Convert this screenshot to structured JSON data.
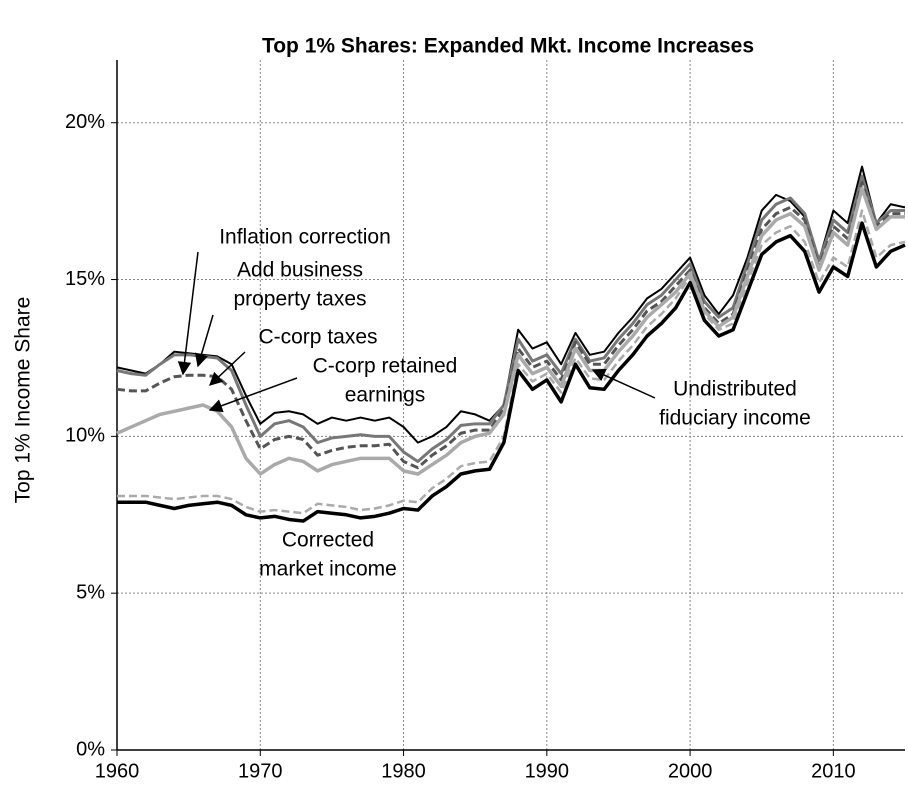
{
  "chart_data": {
    "type": "line",
    "title": "Top 1% Shares: Expanded Mkt. Income Increases",
    "y_label": "Top 1%  Income Share",
    "xlim": [
      1960,
      2015
    ],
    "xticks": [
      1960,
      1970,
      1980,
      1990,
      2000,
      2010
    ],
    "ylim": [
      0,
      22
    ],
    "yticks": [
      {
        "value": 0,
        "label": "0%"
      },
      {
        "value": 5,
        "label": "5%"
      },
      {
        "value": 10,
        "label": "10%"
      },
      {
        "value": 15,
        "label": "15%"
      },
      {
        "value": 20,
        "label": "20%"
      }
    ],
    "grid": true,
    "x": [
      1960,
      1961,
      1962,
      1963,
      1964,
      1965,
      1966,
      1967,
      1968,
      1969,
      1970,
      1971,
      1972,
      1973,
      1974,
      1975,
      1976,
      1977,
      1978,
      1979,
      1980,
      1981,
      1982,
      1983,
      1984,
      1985,
      1986,
      1987,
      1988,
      1989,
      1990,
      1991,
      1992,
      1993,
      1994,
      1995,
      1996,
      1997,
      1998,
      1999,
      2000,
      2001,
      2002,
      2003,
      2004,
      2005,
      2006,
      2007,
      2008,
      2009,
      2010,
      2011,
      2012,
      2013,
      2014,
      2015
    ],
    "series": [
      {
        "name": "Inflation correction",
        "color": "#000000",
        "dashed": false,
        "values": [
          12.2,
          12.1,
          12.0,
          12.3,
          12.7,
          12.65,
          12.6,
          12.55,
          12.3,
          11.3,
          10.4,
          10.75,
          10.8,
          10.7,
          10.4,
          10.6,
          10.5,
          10.6,
          10.5,
          10.6,
          10.3,
          9.8,
          10.0,
          10.3,
          10.8,
          10.7,
          10.5,
          11.0,
          13.4,
          12.8,
          13.0,
          12.3,
          13.3,
          12.6,
          12.7,
          13.3,
          13.8,
          14.4,
          14.7,
          15.2,
          15.7,
          14.5,
          13.9,
          14.5,
          15.7,
          17.2,
          17.7,
          17.5,
          17.0,
          15.6,
          17.2,
          16.8,
          18.6,
          16.8,
          17.4,
          17.3
        ]
      },
      {
        "name": "Add business property taxes",
        "color": "#777777",
        "dashed": false,
        "values": [
          12.1,
          12.0,
          11.95,
          12.3,
          12.6,
          12.6,
          12.55,
          12.5,
          12.1,
          11.0,
          10.0,
          10.4,
          10.5,
          10.3,
          9.8,
          9.95,
          10.0,
          10.05,
          10.0,
          10.0,
          9.5,
          9.2,
          9.6,
          9.9,
          10.35,
          10.4,
          10.4,
          11.0,
          13.1,
          12.4,
          12.6,
          12.0,
          13.1,
          12.4,
          12.5,
          13.1,
          13.6,
          14.2,
          14.5,
          15.0,
          15.5,
          14.3,
          13.8,
          14.1,
          15.5,
          16.9,
          17.4,
          17.6,
          17.1,
          15.6,
          16.9,
          16.5,
          18.3,
          16.8,
          17.2,
          17.2
        ]
      },
      {
        "name": "C-corp taxes",
        "color": "#555555",
        "dashed": true,
        "values": [
          11.5,
          11.45,
          11.45,
          11.7,
          11.9,
          11.95,
          11.95,
          11.9,
          11.5,
          10.5,
          9.6,
          9.9,
          10.0,
          9.9,
          9.4,
          9.55,
          9.65,
          9.7,
          9.7,
          9.75,
          9.2,
          9.0,
          9.4,
          9.7,
          10.1,
          10.2,
          10.2,
          10.9,
          12.8,
          12.2,
          12.4,
          11.8,
          13.0,
          12.3,
          12.3,
          12.9,
          13.4,
          14.0,
          14.3,
          14.8,
          15.3,
          14.1,
          13.6,
          13.9,
          15.3,
          16.6,
          17.1,
          17.3,
          16.9,
          15.4,
          16.7,
          16.3,
          18.1,
          16.7,
          17.1,
          17.1
        ]
      },
      {
        "name": "C-corp retained earnings",
        "color": "#aaaaaa",
        "dashed": false,
        "values": [
          10.1,
          10.3,
          10.5,
          10.7,
          10.8,
          10.9,
          11.0,
          10.8,
          10.3,
          9.3,
          8.8,
          9.1,
          9.3,
          9.2,
          8.9,
          9.1,
          9.2,
          9.3,
          9.3,
          9.3,
          8.9,
          8.8,
          9.1,
          9.4,
          9.8,
          10.0,
          10.1,
          10.7,
          12.6,
          12.0,
          12.2,
          11.6,
          12.8,
          12.1,
          12.1,
          12.7,
          13.2,
          13.8,
          14.2,
          14.6,
          15.2,
          14.0,
          13.5,
          13.8,
          15.1,
          16.4,
          16.9,
          17.1,
          16.7,
          15.3,
          16.5,
          16.1,
          17.9,
          16.6,
          17.0,
          17.0
        ]
      },
      {
        "name": "Undistributed fiduciary income",
        "color": "#aaaaaa",
        "dashed": true,
        "values": [
          8.1,
          8.1,
          8.1,
          8.05,
          8.0,
          8.05,
          8.1,
          8.1,
          8.0,
          7.75,
          7.6,
          7.65,
          7.6,
          7.55,
          7.85,
          7.8,
          7.75,
          7.65,
          7.7,
          7.8,
          7.95,
          7.9,
          8.35,
          8.65,
          9.05,
          9.15,
          9.2,
          10.0,
          12.3,
          11.75,
          12.0,
          11.4,
          12.5,
          11.85,
          11.8,
          12.4,
          12.9,
          13.5,
          13.9,
          14.4,
          15.1,
          13.9,
          13.4,
          13.6,
          14.9,
          16.1,
          16.5,
          16.7,
          16.2,
          14.9,
          15.7,
          15.4,
          17.2,
          15.7,
          16.1,
          16.2
        ]
      },
      {
        "name": "Corrected market income",
        "color": "#000000",
        "dashed": false,
        "values": [
          7.9,
          7.9,
          7.9,
          7.8,
          7.7,
          7.8,
          7.85,
          7.9,
          7.8,
          7.5,
          7.4,
          7.45,
          7.35,
          7.3,
          7.6,
          7.55,
          7.5,
          7.4,
          7.45,
          7.55,
          7.7,
          7.65,
          8.1,
          8.4,
          8.8,
          8.9,
          8.95,
          9.8,
          12.1,
          11.5,
          11.8,
          11.1,
          12.3,
          11.55,
          11.5,
          12.1,
          12.6,
          13.2,
          13.6,
          14.1,
          14.9,
          13.7,
          13.2,
          13.4,
          14.6,
          15.8,
          16.2,
          16.4,
          15.9,
          14.6,
          15.4,
          15.1,
          16.8,
          15.4,
          15.9,
          16.1
        ]
      }
    ],
    "annotations": [
      {
        "lines": [
          "Inflation correction"
        ]
      },
      {
        "lines": [
          "Add business",
          "property taxes"
        ]
      },
      {
        "lines": [
          "C-corp taxes"
        ]
      },
      {
        "lines": [
          "C-corp retained",
          "earnings"
        ]
      },
      {
        "lines": [
          "Undistributed",
          "fiduciary income"
        ]
      },
      {
        "lines": [
          "Corrected",
          "market income"
        ]
      }
    ]
  }
}
